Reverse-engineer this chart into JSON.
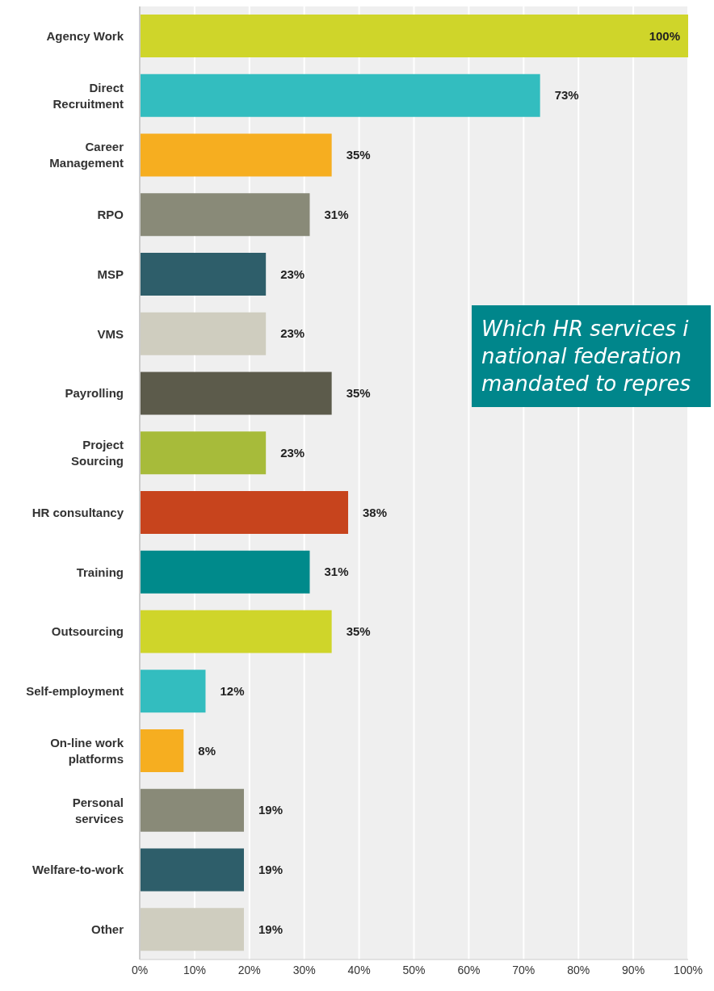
{
  "chart_data": {
    "type": "bar",
    "orientation": "horizontal",
    "categories": [
      "Agency Work",
      "Direct Recruitment",
      "Career Management",
      "RPO",
      "MSP",
      "VMS",
      "Payrolling",
      "Project Sourcing",
      "HR consultancy",
      "Training",
      "Outsourcing",
      "Self-employment",
      "On-line work platforms",
      "Personal services",
      "Welfare-to-work",
      "Other"
    ],
    "values": [
      100,
      73,
      35,
      31,
      23,
      23,
      35,
      23,
      38,
      31,
      35,
      12,
      8,
      19,
      19,
      19
    ],
    "colors": [
      "#cfd52a",
      "#33bdbf",
      "#f6ae20",
      "#898a78",
      "#2e5e6a",
      "#cfcdbf",
      "#5c5b4b",
      "#a7bb3a",
      "#c7441d",
      "#008a8b",
      "#cfd52a",
      "#33bdbf",
      "#f6ae20",
      "#898a78",
      "#2e5e6a",
      "#cfcdbf"
    ],
    "value_labels": [
      "100%",
      "73%",
      "35%",
      "31%",
      "23%",
      "23%",
      "35%",
      "23%",
      "38%",
      "31%",
      "35%",
      "12%",
      "8%",
      "19%",
      "19%",
      "19%"
    ],
    "xlim": [
      0,
      100
    ],
    "xticks": [
      {
        "value": 0,
        "label": "0%"
      },
      {
        "value": 10,
        "label": "10%"
      },
      {
        "value": 20,
        "label": "20%"
      },
      {
        "value": 30,
        "label": "30%"
      },
      {
        "value": 40,
        "label": "40%"
      },
      {
        "value": 50,
        "label": "50%"
      },
      {
        "value": 60,
        "label": "60%"
      },
      {
        "value": 70,
        "label": "70%"
      },
      {
        "value": 80,
        "label": "80%"
      },
      {
        "value": 90,
        "label": "90%"
      },
      {
        "value": 100,
        "label": "100%"
      }
    ],
    "grid": "x",
    "annotations": [
      "Which HR services i\nnational federation\nmandated to repres"
    ]
  }
}
